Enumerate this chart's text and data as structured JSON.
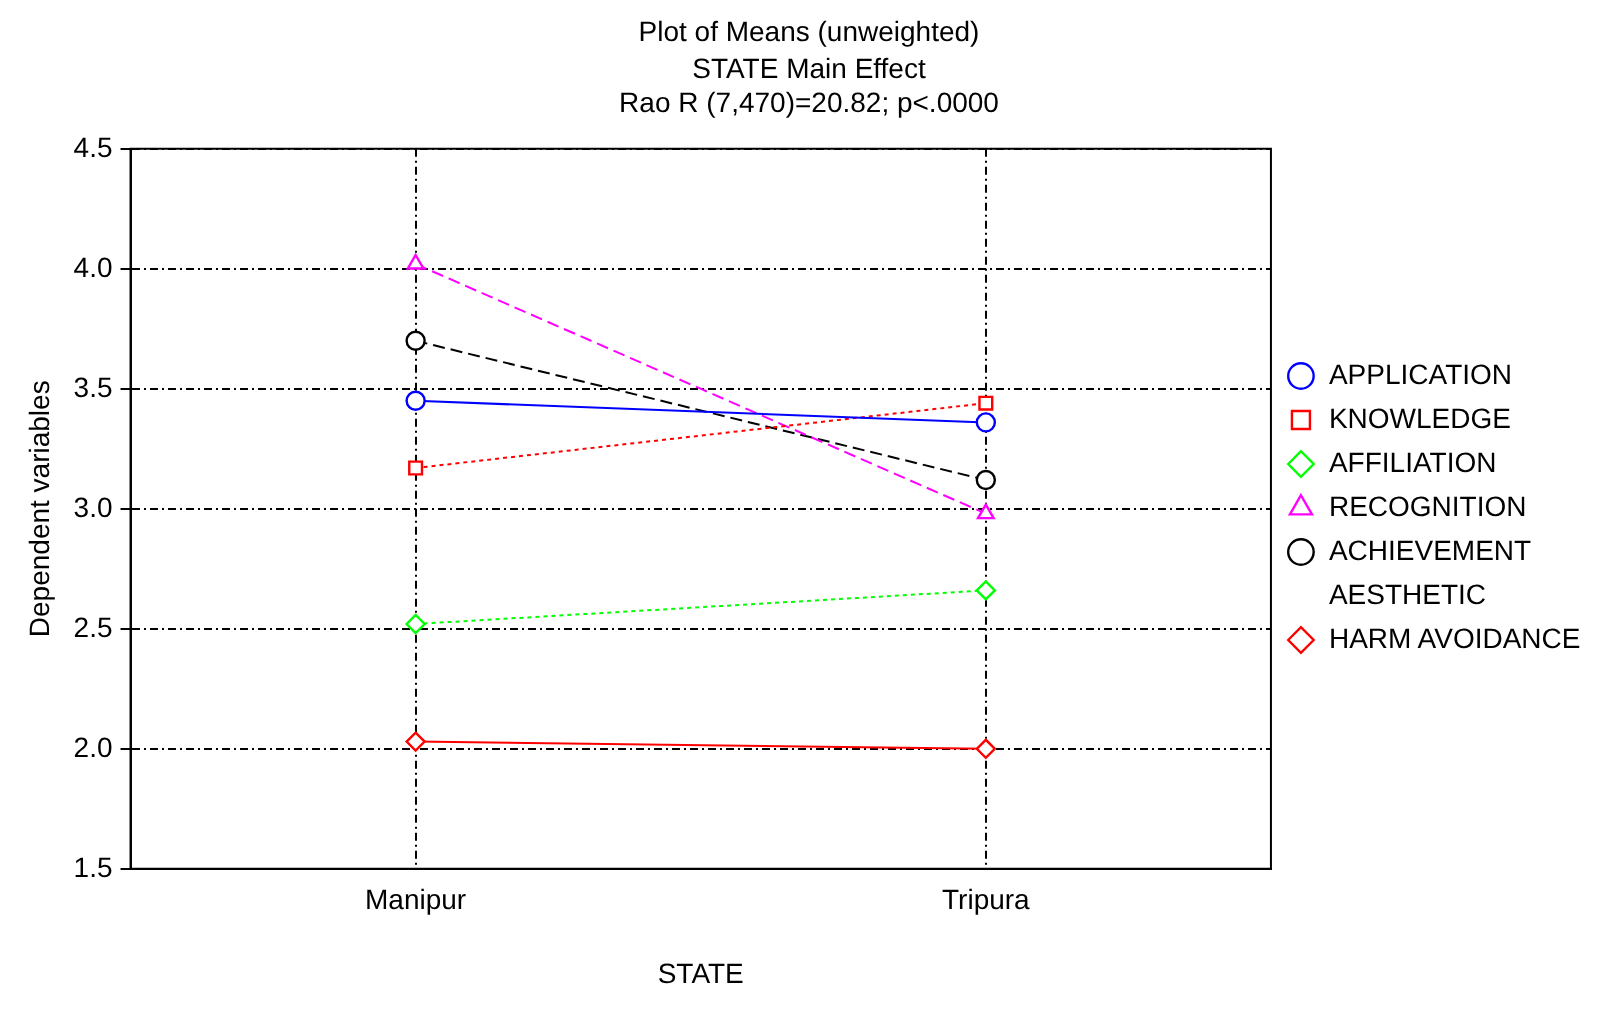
{
  "chart_data": {
    "type": "line",
    "title": "Plot of Means (unweighted)",
    "subtitle": "STATE Main Effect\nRao R (7,470)=20.82; p<.0000",
    "xlabel": "STATE",
    "ylabel": "Dependent variables",
    "categories": [
      "Manipur",
      "Tripura"
    ],
    "series": [
      {
        "name": "APPLICATION",
        "color": "#0000ff",
        "values": [
          3.45,
          3.36
        ],
        "marker": "circle",
        "line_style": "solid"
      },
      {
        "name": "KNOWLEDGE",
        "color": "#ff0000",
        "values": [
          3.17,
          3.44
        ],
        "marker": "square",
        "line_style": "dotted"
      },
      {
        "name": "AFFILIATION",
        "color": "#00ff00",
        "values": [
          2.52,
          2.66
        ],
        "marker": "diamond",
        "line_style": "dotted"
      },
      {
        "name": "RECOGNITION",
        "color": "#ff00ff",
        "values": [
          4.02,
          2.98
        ],
        "marker": "triangle",
        "line_style": "dashed"
      },
      {
        "name": "ACHIEVEMENT",
        "color": "#000000",
        "values": [
          3.7,
          3.12
        ],
        "marker": "circle",
        "line_style": "dashed"
      },
      {
        "name": "AESTHETIC",
        "values": [
          null,
          null
        ],
        "marker": "none",
        "line_style": "solid"
      },
      {
        "name": "HARM AVOIDANCE",
        "color": "#ff0000",
        "values": [
          2.03,
          2.0
        ],
        "marker": "diamond",
        "line_style": "solid"
      }
    ],
    "ylim": [
      1.5,
      4.5
    ],
    "yticks": [
      1.5,
      {
        "value": 2,
        "label": "2.0"
      },
      2.5,
      {
        "value": 3,
        "label": "3.0"
      },
      3.5,
      {
        "value": 4,
        "label": "4.0"
      },
      4.5
    ],
    "grid": true,
    "legend": "right"
  }
}
